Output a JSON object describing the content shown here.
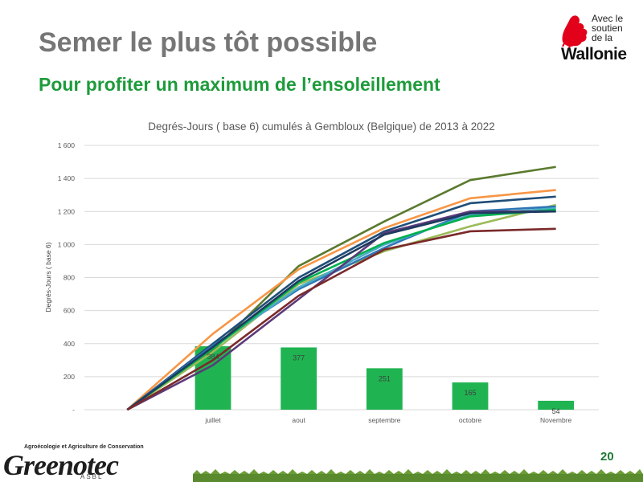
{
  "slide": {
    "title": "Semer le plus tôt possible",
    "subtitle": "Pour profiter un maximum de l’ensoleillement",
    "page_number": "20"
  },
  "logos": {
    "wallonie_line1": "Avec le",
    "wallonie_line2": "soutien",
    "wallonie_line3": "de la",
    "wallonie_name": "Wallonie",
    "greenotec_tagline": "Agroécologie et Agriculture de Conservation",
    "greenotec_name": "Greenotec",
    "greenotec_suffix": "ASBL"
  },
  "colors": {
    "title_gray": "#767676",
    "subtitle_green": "#1e9b3b",
    "bar_green": "#1fb451"
  },
  "chart_data": {
    "type": "line",
    "title": "Degrés-Jours ( base 6) cumulés à Gembloux (Belgique) de 2013 à 2022",
    "ylabel": "Degrés-Jours ( base 6)",
    "ylim": [
      0,
      1600
    ],
    "yticks": [
      0,
      200,
      400,
      600,
      800,
      1000,
      1200,
      1400,
      1600
    ],
    "ytick_labels": [
      "-",
      "200",
      "400",
      "600",
      "800",
      "1 000",
      "1 200",
      "1 400",
      "1 600"
    ],
    "categories": [
      "",
      "juillet",
      "aout",
      "septembre",
      "octobre",
      "Novembre"
    ],
    "grid": true,
    "bars": {
      "values": [
        384,
        377,
        251,
        165,
        54
      ],
      "labels": [
        "384",
        "377",
        "251",
        "165",
        "54"
      ],
      "categories": [
        "juillet",
        "aout",
        "septembre",
        "octobre",
        "Novembre"
      ],
      "color": "#1fb451"
    },
    "series": [
      {
        "color": "#5b7a2e",
        "values": [
          0,
          360,
          870,
          1140,
          1390,
          1470
        ]
      },
      {
        "color": "#f79646",
        "values": [
          0,
          460,
          850,
          1100,
          1280,
          1330
        ]
      },
      {
        "color": "#1f4e79",
        "values": [
          0,
          400,
          800,
          1080,
          1250,
          1290
        ]
      },
      {
        "color": "#9bbb59",
        "values": [
          0,
          350,
          760,
          960,
          1110,
          1240
        ]
      },
      {
        "color": "#2e75b6",
        "values": [
          0,
          390,
          730,
          980,
          1200,
          1230
        ]
      },
      {
        "color": "#4bacc6",
        "values": [
          0,
          380,
          740,
          1000,
          1180,
          1220
        ]
      },
      {
        "color": "#00b050",
        "values": [
          0,
          370,
          770,
          1010,
          1170,
          1210
        ]
      },
      {
        "color": "#5b3a7a",
        "values": [
          0,
          270,
          670,
          1070,
          1200,
          1200
        ]
      },
      {
        "color": "#1d3a5f",
        "values": [
          0,
          380,
          780,
          1060,
          1190,
          1200
        ]
      },
      {
        "color": "#7b2a2a",
        "values": [
          0,
          300,
          690,
          970,
          1080,
          1095
        ]
      }
    ]
  }
}
